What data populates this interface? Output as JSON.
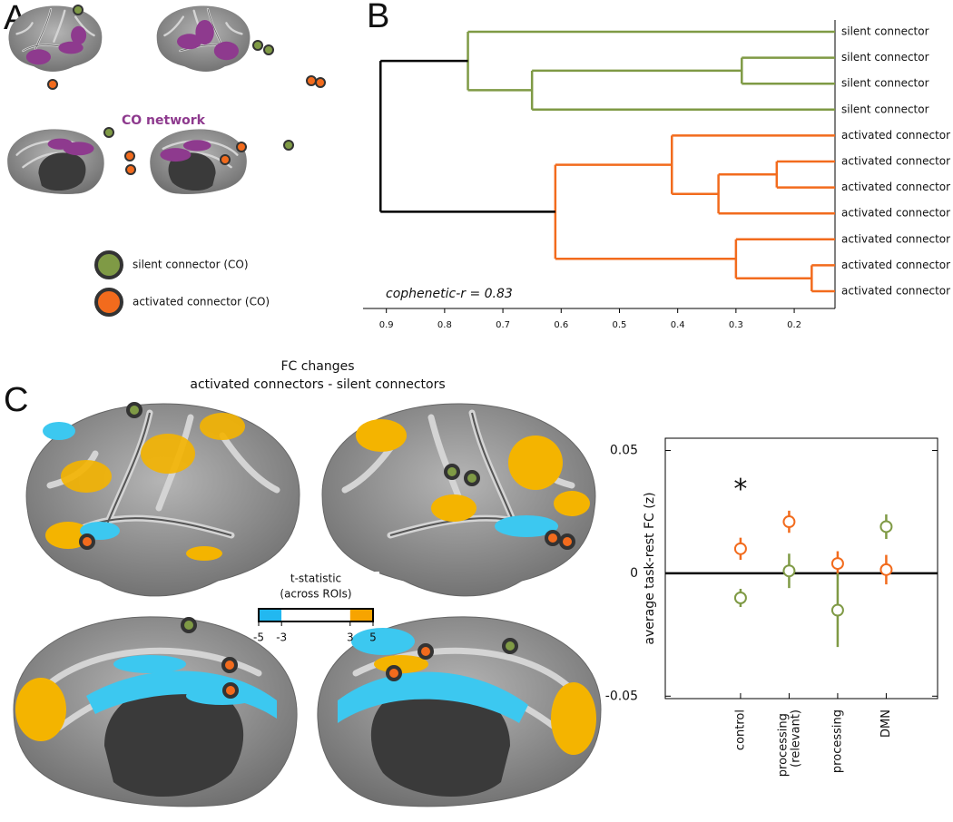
{
  "panel_labels": [
    "A",
    "B",
    "C"
  ],
  "panel_a": {
    "network_label": "CO network",
    "legend": [
      {
        "name": "silent connector (CO)",
        "color": "#7f9a45"
      },
      {
        "name": "activated connector (CO)",
        "color": "#f26b1d"
      }
    ]
  },
  "panel_c": {
    "title": "FC changes",
    "subtitle": "activated connectors - silent connectors",
    "colorbar": {
      "title": "t-statistic",
      "subtitle": "(across ROIs)",
      "lim": [
        -5,
        5
      ],
      "ticks": [
        -5,
        -3,
        3,
        5
      ]
    }
  },
  "chart_data": [
    {
      "type": "dendrogram",
      "annotation": "cophenetic-r = 0.83",
      "xlim": [
        0.94,
        0.13
      ],
      "xticks": [
        0.9,
        0.8,
        0.7,
        0.6,
        0.5,
        0.4,
        0.3,
        0.2
      ],
      "tree": {
        "height": 0.91,
        "color": "#000000",
        "children": [
          {
            "height": 0.76,
            "color": "#7f9a45",
            "children": [
              "silent connector",
              {
                "height": 0.65,
                "children": [
                  {
                    "height": 0.29,
                    "children": [
                      "silent connector",
                      "silent connector"
                    ]
                  },
                  "silent connector"
                ]
              }
            ]
          },
          {
            "height": 0.61,
            "color": "#f26b1d",
            "children": [
              {
                "height": 0.41,
                "children": [
                  "activated connector",
                  {
                    "height": 0.33,
                    "children": [
                      {
                        "height": 0.23,
                        "children": [
                          "activated connector",
                          "activated connector"
                        ]
                      },
                      "activated connector"
                    ]
                  }
                ]
              },
              {
                "height": 0.3,
                "children": [
                  "activated connector",
                  {
                    "height": 0.17,
                    "children": [
                      "activated connector",
                      "activated connector"
                    ]
                  }
                ]
              }
            ]
          }
        ]
      }
    },
    {
      "type": "errorbar",
      "ylabel": "average task-rest FC (z)",
      "categories": [
        "control",
        "processing (relevant)",
        "processing",
        "DMN"
      ],
      "series": [
        {
          "color": "#f26b1d",
          "values": [
            0.01,
            0.021,
            0.004,
            0.0015
          ],
          "errors": [
            0.0045,
            0.0045,
            0.005,
            0.006
          ]
        },
        {
          "color": "#7f9a45",
          "values": [
            -0.01,
            0.001,
            -0.015,
            0.019
          ],
          "errors": [
            0.0037,
            0.007,
            0.015,
            0.005
          ]
        }
      ],
      "ylim": [
        -0.051,
        0.055
      ],
      "yticks": [
        -0.05,
        0,
        0.05
      ],
      "zero_line": true,
      "annotations": [
        {
          "text": "*",
          "category": "control",
          "y": 0.036
        }
      ]
    }
  ]
}
